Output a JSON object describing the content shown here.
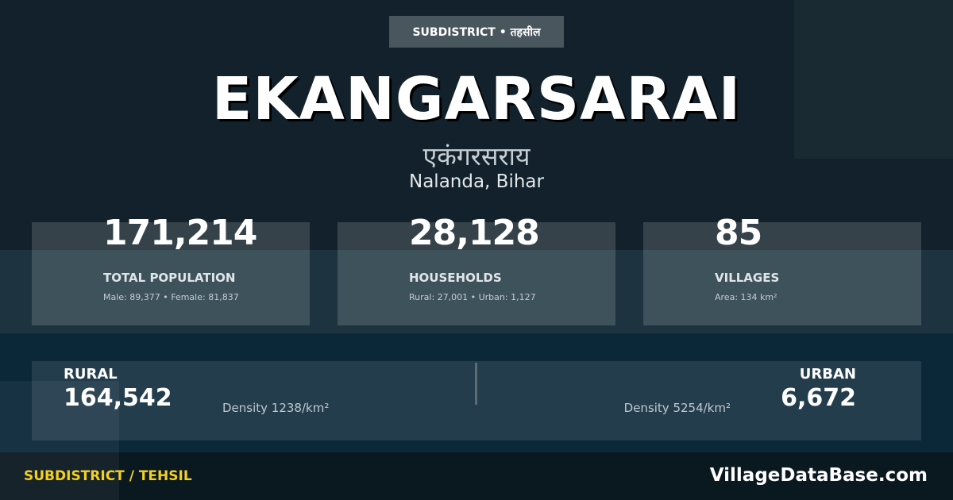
{
  "badge": "SUBDISTRICT • तहसील",
  "title": "EKANGARSARAI",
  "title_hindi": "एकंगरसराय",
  "location": "Nalanda, Bihar",
  "stats": [
    {
      "value": "171,214",
      "label": "TOTAL POPULATION",
      "detail": "Male: 89,377 • Female: 81,837"
    },
    {
      "value": "28,128",
      "label": "HOUSEHOLDS",
      "detail": "Rural: 27,001 • Urban: 1,127"
    },
    {
      "value": "85",
      "label": "VILLAGES",
      "detail": "Area: 134 km²"
    }
  ],
  "rural": {
    "label": "RURAL",
    "value": "164,542",
    "density": "Density 1238/km²"
  },
  "urban": {
    "label": "URBAN",
    "value": "6,672",
    "density": "Density 5254/km²"
  },
  "footer": {
    "category": "SUBDISTRICT / TEHSIL",
    "brand": "VillageDataBase.com"
  },
  "colors": {
    "accent": "#f5d020",
    "background": "#12212b"
  }
}
